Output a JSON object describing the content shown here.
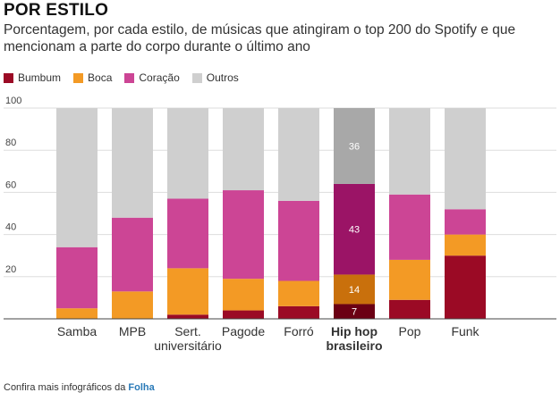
{
  "header": {
    "title": "POR ESTILO",
    "subtitle": "Porcentagem, por cada estilo, de músicas que atingiram o top 200 do Spotify e que mencionam a parte do corpo durante o último ano"
  },
  "legend": [
    {
      "label": "Bumbum",
      "color": "#9b0a25"
    },
    {
      "label": "Boca",
      "color": "#f39a25"
    },
    {
      "label": "Coração",
      "color": "#cc4595"
    },
    {
      "label": "Outros",
      "color": "#cfcfcf"
    }
  ],
  "chart_data": {
    "type": "bar",
    "stacked": true,
    "categories": [
      "Samba",
      "MPB",
      "Sert. universitário",
      "Pagode",
      "Forró",
      "Hip hop brasileiro",
      "Pop",
      "Funk"
    ],
    "highlighted_category": "Hip hop brasileiro",
    "series": [
      {
        "name": "Bumbum",
        "color": "#9b0a25",
        "highlight_color": "#6b0014",
        "values": [
          0,
          0,
          2,
          4,
          6,
          7,
          9,
          30
        ]
      },
      {
        "name": "Boca",
        "color": "#f39a25",
        "highlight_color": "#c9700c",
        "values": [
          5,
          13,
          22,
          15,
          12,
          14,
          19,
          10
        ]
      },
      {
        "name": "Coração",
        "color": "#cc4595",
        "highlight_color": "#9b1466",
        "values": [
          29,
          35,
          33,
          42,
          38,
          43,
          31,
          12
        ]
      },
      {
        "name": "Outros",
        "color": "#cfcfcf",
        "highlight_color": "#a8a8a8",
        "values": [
          66,
          52,
          43,
          39,
          44,
          36,
          41,
          48
        ]
      }
    ],
    "data_labels": {
      "category": "Hip hop brasileiro",
      "values": [
        "7",
        "14",
        "43",
        "36"
      ]
    },
    "yticks": [
      20,
      40,
      60,
      80,
      100
    ],
    "ytick_labels": [
      "20",
      "40",
      "60",
      "80",
      "100"
    ],
    "ylim": [
      0,
      100
    ],
    "grid": true
  },
  "footer": {
    "text": "Confira mais infográficos da ",
    "link": "Folha"
  }
}
